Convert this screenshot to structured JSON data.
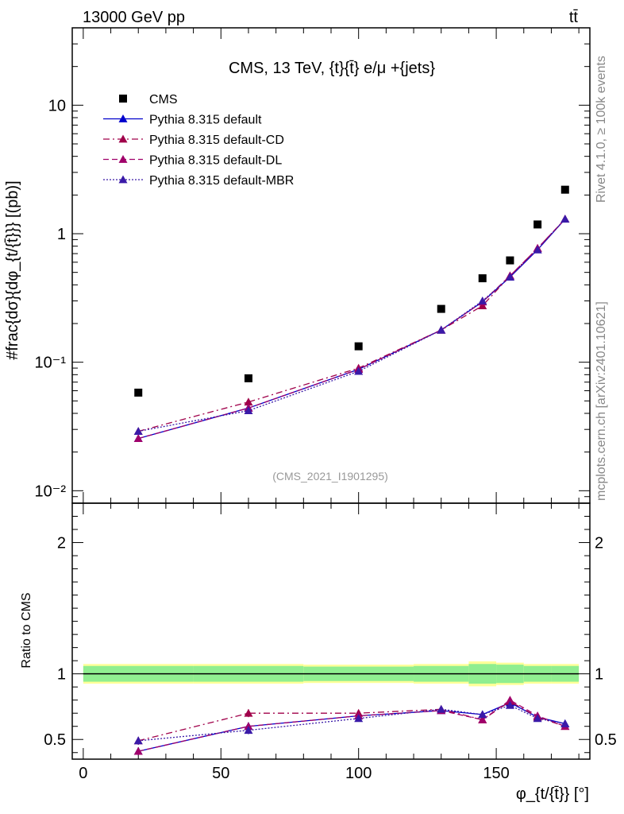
{
  "header": {
    "left": "13000 GeV pp",
    "right": "tt̄"
  },
  "side_labels": {
    "rivet": "Rivet 4.1.0, ≥ 100k events",
    "mcplots": "mcplots.cern.ch [arXiv:2401.10621]"
  },
  "analysis_id": "(CMS_2021_I1901295)",
  "colors": {
    "cms": "#000000",
    "default": "#0000cc",
    "cd": "#a0004a",
    "dl": "#a0006a",
    "mbr": "#3a1aa8",
    "band_inner": "#90ee90",
    "band_outer": "#ffff99"
  },
  "chart_data": [
    {
      "type": "line",
      "title": "CMS, 13 TeV, {t}{t̄} e/μ +{jets}",
      "ylabel": "#frac{dσ}{dφ_{t/{t̄}}} [(pb)]",
      "yscale": "log",
      "ylim": [
        0.008,
        40
      ],
      "xlim": [
        -4,
        184
      ],
      "y_tick_labels": [
        "10⁻²",
        "10⁻¹",
        "1",
        "10"
      ],
      "y_tick_values": [
        0.01,
        0.1,
        1,
        10
      ],
      "x": [
        20,
        60,
        100,
        130,
        145,
        155,
        165,
        175
      ],
      "series": [
        {
          "name": "CMS",
          "marker": "square",
          "values": [
            0.058,
            0.075,
            0.133,
            0.26,
            0.45,
            0.62,
            1.18,
            2.2
          ]
        },
        {
          "name": "Pythia 8.315 default",
          "marker": "triangle",
          "line": "solid",
          "values": [
            0.0255,
            0.044,
            0.088,
            0.178,
            0.295,
            0.46,
            0.75,
            1.3
          ]
        },
        {
          "name": "Pythia 8.315 default-CD",
          "marker": "triangle",
          "line": "dashdot",
          "values": [
            0.029,
            0.049,
            0.09,
            0.178,
            0.275,
            0.47,
            0.77,
            1.3
          ]
        },
        {
          "name": "Pythia 8.315 default-DL",
          "marker": "triangle",
          "line": "dashed",
          "values": [
            0.0255,
            0.044,
            0.088,
            0.178,
            0.295,
            0.47,
            0.77,
            1.3
          ]
        },
        {
          "name": "Pythia 8.315 default-MBR",
          "marker": "triangle",
          "line": "dotted",
          "values": [
            0.029,
            0.042,
            0.085,
            0.178,
            0.3,
            0.46,
            0.75,
            1.3
          ]
        }
      ]
    },
    {
      "type": "line",
      "xlabel": "φ_{t/{t̄}} [°]",
      "ylabel": "Ratio to CMS",
      "ylim": [
        0.35,
        2.3
      ],
      "xlim": [
        -4,
        184
      ],
      "y_tick_labels": [
        "0.5",
        "1",
        "2"
      ],
      "y_tick_values": [
        0.5,
        1,
        2
      ],
      "x_tick_labels": [
        "0",
        "50",
        "100",
        "150"
      ],
      "x_tick_values": [
        0,
        50,
        100,
        150
      ],
      "reference_band": {
        "x_edges": [
          0,
          40,
          80,
          120,
          140,
          150,
          160,
          170,
          180
        ],
        "inner": [
          0.06,
          0.06,
          0.055,
          0.06,
          0.075,
          0.07,
          0.06,
          0.06
        ],
        "outer": [
          0.075,
          0.075,
          0.07,
          0.075,
          0.095,
          0.085,
          0.075,
          0.075
        ]
      },
      "series": [
        {
          "name": "Pythia 8.315 default",
          "values": [
            0.41,
            0.6,
            0.68,
            0.72,
            0.69,
            0.78,
            0.67,
            0.62
          ],
          "errors": [
            0.03,
            0.03,
            0.02,
            0.02,
            0.02,
            0.02,
            0.02,
            0.01
          ]
        },
        {
          "name": "Pythia 8.315 default-CD",
          "values": [
            0.49,
            0.7,
            0.7,
            0.73,
            0.65,
            0.79,
            0.67,
            0.6
          ],
          "errors": [
            0.03,
            0.03,
            0.02,
            0.02,
            0.02,
            0.02,
            0.02,
            0.01
          ]
        },
        {
          "name": "Pythia 8.315 default-DL",
          "values": [
            0.41,
            0.6,
            0.68,
            0.72,
            0.65,
            0.8,
            0.68,
            0.6
          ],
          "errors": [
            0.03,
            0.03,
            0.02,
            0.02,
            0.02,
            0.02,
            0.02,
            0.01
          ]
        },
        {
          "name": "Pythia 8.315 default-MBR",
          "values": [
            0.49,
            0.57,
            0.66,
            0.73,
            0.69,
            0.76,
            0.66,
            0.62
          ],
          "errors": [
            0.03,
            0.03,
            0.02,
            0.02,
            0.02,
            0.02,
            0.02,
            0.01
          ]
        }
      ]
    }
  ]
}
